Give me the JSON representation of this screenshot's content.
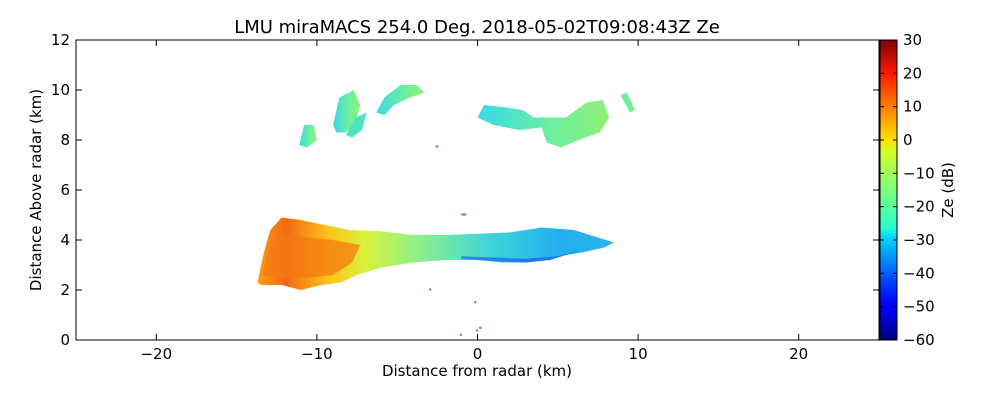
{
  "chart_data": {
    "type": "heatmap",
    "title": "LMU miraMACS 254.0 Deg. 2018-05-02T09:08:43Z  Ze",
    "xlabel": "Distance from radar (km)",
    "ylabel": "Distance Above radar  (km)",
    "xlim": [
      -25,
      25
    ],
    "ylim": [
      0,
      12
    ],
    "xticks": [
      -20,
      -10,
      0,
      10,
      20
    ],
    "xtick_labels": [
      "−20",
      "−10",
      "0",
      "10",
      "20"
    ],
    "yticks": [
      0,
      2,
      4,
      6,
      8,
      10,
      12
    ],
    "ytick_labels": [
      "0",
      "2",
      "4",
      "6",
      "8",
      "10",
      "12"
    ],
    "colorbar": {
      "label": "Ze (dB)",
      "range": [
        -60,
        30
      ],
      "ticks": [
        30,
        20,
        10,
        0,
        -10,
        -20,
        -30,
        -40,
        -50,
        -60
      ],
      "tick_labels": [
        "30",
        "20",
        "10",
        "0",
        "−10",
        "−20",
        "−30",
        "−40",
        "−50",
        "−60"
      ],
      "colormap": "jet"
    },
    "echo_regions": [
      {
        "name": "lower-cloud-band",
        "x_range_km": [
          -13.7,
          8.5
        ],
        "z_range_km": [
          2.0,
          5.0
        ],
        "ze_range_dB": [
          -40,
          20
        ]
      },
      {
        "name": "upper-cloud-left-1",
        "x_range_km": [
          -11.1,
          -10.0
        ],
        "z_range_km": [
          7.8,
          8.6
        ],
        "ze_range_dB": [
          -25,
          -20
        ]
      },
      {
        "name": "upper-cloud-left-2",
        "x_range_km": [
          -9.0,
          -7.2
        ],
        "z_range_km": [
          8.2,
          10.0
        ],
        "ze_range_dB": [
          -30,
          -20
        ]
      },
      {
        "name": "upper-cloud-left-3",
        "x_range_km": [
          -6.4,
          -3.3
        ],
        "z_range_km": [
          9.1,
          10.3
        ],
        "ze_range_dB": [
          -25,
          -15
        ]
      },
      {
        "name": "upper-cloud-right",
        "x_range_km": [
          0.0,
          8.2
        ],
        "z_range_km": [
          7.7,
          9.6
        ],
        "ze_range_dB": [
          -30,
          -15
        ]
      },
      {
        "name": "upper-cloud-far-right",
        "x_range_km": [
          8.9,
          9.8
        ],
        "z_range_km": [
          9.1,
          10.0
        ],
        "ze_range_dB": [
          -25,
          -20
        ]
      }
    ]
  }
}
